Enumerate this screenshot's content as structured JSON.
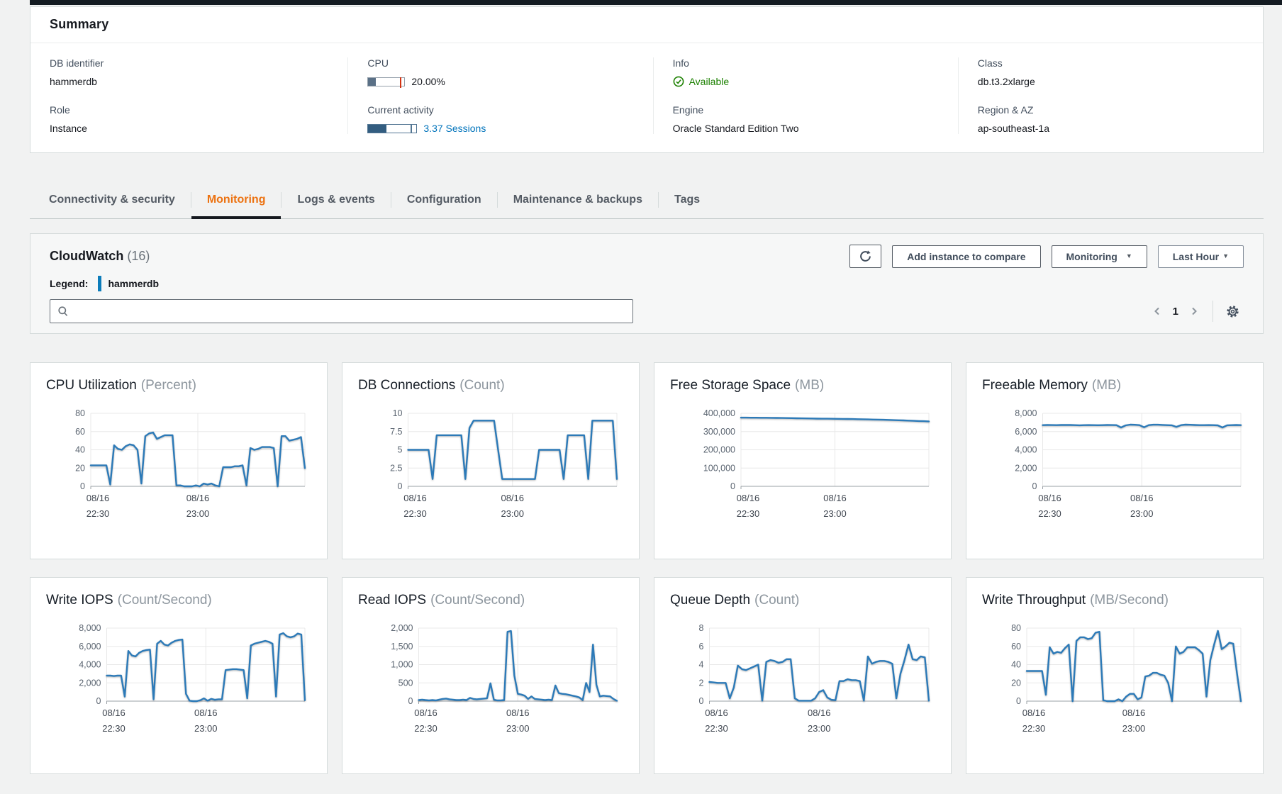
{
  "summary": {
    "title": "Summary",
    "db_identifier": {
      "label": "DB identifier",
      "value": "hammerdb"
    },
    "role": {
      "label": "Role",
      "value": "Instance"
    },
    "cpu": {
      "label": "CPU",
      "value": "20.00%",
      "percent": 20
    },
    "current_activity": {
      "label": "Current activity",
      "value": "3.37 Sessions",
      "percent": 38
    },
    "info": {
      "label": "Info",
      "value": "Available"
    },
    "engine": {
      "label": "Engine",
      "value": "Oracle Standard Edition Two"
    },
    "class": {
      "label": "Class",
      "value": "db.t3.2xlarge"
    },
    "region": {
      "label": "Region & AZ",
      "value": "ap-southeast-1a"
    }
  },
  "tabs": [
    {
      "label": "Connectivity & security",
      "active": false
    },
    {
      "label": "Monitoring",
      "active": true
    },
    {
      "label": "Logs & events",
      "active": false
    },
    {
      "label": "Configuration",
      "active": false
    },
    {
      "label": "Maintenance & backups",
      "active": false
    },
    {
      "label": "Tags",
      "active": false
    }
  ],
  "cloudwatch": {
    "title": "CloudWatch",
    "count": "(16)",
    "legend_label": "Legend:",
    "legend_item": "hammerdb",
    "search_placeholder": "",
    "add_instance_button": "Add instance to compare",
    "monitoring_dropdown": "Monitoring",
    "time_range_dropdown": "Last Hour",
    "page_number": "1"
  },
  "icons": {
    "caret_down": "▼"
  },
  "colors": {
    "accent_orange": "#ec7211",
    "link_blue": "#0073bb",
    "status_green": "#1d8102",
    "chart_line_blue": "#2c7ab8",
    "legend_swatch_blue": "#0c7cba",
    "active_tab_underline": "#16191f"
  },
  "chart_data": [
    {
      "type": "line",
      "title": "CPU Utilization",
      "unit": "(Percent)",
      "series_name": "hammerdb",
      "ylim": [
        0,
        80
      ],
      "yticks": [
        0,
        20,
        40,
        60,
        80
      ],
      "ytick_labels": [
        "0",
        "20",
        "40",
        "60",
        "80"
      ],
      "x_tick_labels": [
        [
          "08/16",
          "22:30"
        ],
        [
          "08/16",
          "23:00"
        ]
      ],
      "grid": true,
      "legend_position": "none",
      "values": [
        23,
        23,
        23,
        23,
        23,
        2,
        45,
        41,
        40,
        44,
        46,
        45,
        40,
        3,
        55,
        58,
        59,
        52,
        54,
        56,
        56,
        56,
        1,
        1,
        0,
        0,
        0,
        1,
        0,
        3,
        2,
        3,
        1,
        0,
        21,
        21,
        21,
        22,
        22,
        23,
        1,
        42,
        40,
        41,
        43,
        43,
        43,
        42,
        0,
        55,
        55,
        50,
        51,
        52,
        54,
        20
      ]
    },
    {
      "type": "line",
      "title": "DB Connections",
      "unit": "(Count)",
      "series_name": "hammerdb",
      "ylim": [
        0,
        10
      ],
      "yticks": [
        0,
        2.5,
        5,
        7.5,
        10
      ],
      "ytick_labels": [
        "0",
        "2.5",
        "5",
        "7.5",
        "10"
      ],
      "x_tick_labels": [
        [
          "08/16",
          "22:30"
        ],
        [
          "08/16",
          "23:00"
        ]
      ],
      "grid": true,
      "legend_position": "none",
      "values": [
        5,
        5,
        5,
        5,
        5,
        5,
        1,
        7,
        7,
        7,
        7,
        7,
        7,
        7,
        1,
        8,
        9,
        9,
        9,
        9,
        9,
        9,
        5,
        1,
        1,
        1,
        1,
        1,
        1,
        1,
        1,
        1,
        5,
        5,
        5,
        5,
        5,
        5,
        1,
        7,
        7,
        7,
        7,
        7,
        1,
        9,
        9,
        9,
        9,
        9,
        9,
        1
      ]
    },
    {
      "type": "line",
      "title": "Free Storage Space",
      "unit": "(MB)",
      "series_name": "hammerdb",
      "ylim": [
        0,
        400000
      ],
      "yticks": [
        0,
        100000,
        200000,
        300000,
        400000
      ],
      "ytick_labels": [
        "0",
        "100,000",
        "200,000",
        "300,000",
        "400,000"
      ],
      "x_tick_labels": [
        [
          "08/16",
          "22:30"
        ],
        [
          "08/16",
          "23:00"
        ]
      ],
      "grid": true,
      "legend_position": "none",
      "values": [
        376500,
        376300,
        376100,
        375900,
        375700,
        375400,
        375000,
        374600,
        374200,
        373800,
        373400,
        373000,
        372500,
        372000,
        371500,
        371000,
        370600,
        370300,
        370000,
        369700,
        369300,
        368900,
        368400,
        367900,
        367300,
        366700,
        366000,
        365300,
        364500,
        363700,
        362900,
        362000,
        361000,
        360000,
        358900,
        357800,
        356700,
        355800
      ]
    },
    {
      "type": "line",
      "title": "Freeable Memory",
      "unit": "(MB)",
      "series_name": "hammerdb",
      "ylim": [
        0,
        8000
      ],
      "yticks": [
        0,
        2000,
        4000,
        6000,
        8000
      ],
      "ytick_labels": [
        "0",
        "2,000",
        "4,000",
        "6,000",
        "8,000"
      ],
      "x_tick_labels": [
        [
          "08/16",
          "22:30"
        ],
        [
          "08/16",
          "23:00"
        ]
      ],
      "grid": true,
      "legend_position": "none",
      "values": [
        6700,
        6720,
        6710,
        6700,
        6715,
        6730,
        6720,
        6700,
        6690,
        6700,
        6710,
        6700,
        6695,
        6700,
        6720,
        6710,
        6700,
        6450,
        6680,
        6760,
        6740,
        6700,
        6470,
        6700,
        6750,
        6750,
        6730,
        6700,
        6690,
        6520,
        6700,
        6760,
        6740,
        6720,
        6700,
        6700,
        6710,
        6700,
        6680,
        6450,
        6690,
        6700,
        6720,
        6700
      ]
    },
    {
      "type": "line",
      "title": "Write IOPS",
      "unit": "(Count/Second)",
      "series_name": "hammerdb",
      "ylim": [
        0,
        8000
      ],
      "yticks": [
        0,
        2000,
        4000,
        6000,
        8000
      ],
      "ytick_labels": [
        "0",
        "2,000",
        "4,000",
        "6,000",
        "8,000"
      ],
      "x_tick_labels": [
        [
          "08/16",
          "22:30"
        ],
        [
          "08/16",
          "23:00"
        ]
      ],
      "grid": true,
      "legend_position": "none",
      "values": [
        2800,
        2800,
        2750,
        2800,
        2800,
        500,
        5500,
        5000,
        4900,
        5300,
        5500,
        5600,
        5650,
        200,
        6300,
        6600,
        6200,
        6100,
        6400,
        6600,
        6700,
        6750,
        800,
        50,
        0,
        0,
        100,
        300,
        50,
        250,
        150,
        200,
        200,
        3400,
        3450,
        3500,
        3500,
        3450,
        3400,
        300,
        6100,
        6300,
        6400,
        6500,
        6600,
        6500,
        6300,
        500,
        7300,
        7450,
        7100,
        7000,
        7100,
        7400,
        7300,
        100
      ]
    },
    {
      "type": "line",
      "title": "Read IOPS",
      "unit": "(Count/Second)",
      "series_name": "hammerdb",
      "ylim": [
        0,
        2000
      ],
      "yticks": [
        0,
        500,
        1000,
        1500,
        2000
      ],
      "ytick_labels": [
        "0",
        "500",
        "1,000",
        "1,500",
        "2,000"
      ],
      "x_tick_labels": [
        [
          "08/16",
          "22:30"
        ],
        [
          "08/16",
          "23:00"
        ]
      ],
      "grid": true,
      "legend_position": "none",
      "values": [
        30,
        40,
        30,
        20,
        30,
        20,
        40,
        60,
        70,
        50,
        40,
        30,
        30,
        40,
        30,
        90,
        60,
        50,
        60,
        70,
        80,
        490,
        40,
        20,
        20,
        30,
        1900,
        1920,
        700,
        200,
        180,
        150,
        60,
        130,
        60,
        50,
        40,
        30,
        40,
        30,
        430,
        220,
        200,
        190,
        170,
        150,
        130,
        100,
        30,
        500,
        250,
        1550,
        450,
        130,
        150,
        140,
        130,
        60,
        10
      ]
    },
    {
      "type": "line",
      "title": "Queue Depth",
      "unit": "(Count)",
      "series_name": "hammerdb",
      "ylim": [
        0,
        8
      ],
      "yticks": [
        0,
        2,
        4,
        6,
        8
      ],
      "ytick_labels": [
        "0",
        "2",
        "4",
        "6",
        "8"
      ],
      "x_tick_labels": [
        [
          "08/16",
          "22:30"
        ],
        [
          "08/16",
          "23:00"
        ]
      ],
      "grid": true,
      "legend_position": "none",
      "values": [
        2.1,
        2.05,
        2,
        2,
        2,
        0.3,
        1.5,
        3.9,
        3.5,
        3.4,
        3.6,
        3.8,
        4,
        0.05,
        4.3,
        4.5,
        4.4,
        4.2,
        4.3,
        4.6,
        4.6,
        0.3,
        0.05,
        0.05,
        0.05,
        0.05,
        0.3,
        1,
        1.2,
        0.4,
        0.15,
        0.1,
        2.2,
        2.2,
        2.4,
        2.3,
        2.3,
        2.2,
        0.05,
        4.9,
        4.1,
        4.3,
        4.4,
        4.4,
        4.3,
        4.1,
        0.3,
        3,
        4.5,
        6.2,
        4.6,
        4.5,
        4.9,
        4.8,
        0.05
      ]
    },
    {
      "type": "line",
      "title": "Write Throughput",
      "unit": "(MB/Second)",
      "series_name": "hammerdb",
      "ylim": [
        0,
        80
      ],
      "yticks": [
        0,
        20,
        40,
        60,
        80
      ],
      "ytick_labels": [
        "0",
        "20",
        "40",
        "60",
        "80"
      ],
      "x_tick_labels": [
        [
          "08/16",
          "22:30"
        ],
        [
          "08/16",
          "23:00"
        ]
      ],
      "grid": true,
      "legend_position": "none",
      "values": [
        33,
        33,
        33,
        33,
        33,
        7,
        59,
        52,
        54,
        53,
        58,
        62,
        0,
        66,
        70,
        70,
        68,
        69,
        75,
        76,
        1,
        0,
        0,
        0,
        2,
        0,
        5,
        8,
        8,
        2,
        4,
        27,
        28,
        31,
        31,
        29,
        28,
        20,
        0,
        60,
        52,
        54,
        59,
        59,
        59,
        56,
        52,
        5,
        45,
        62,
        77,
        57,
        60,
        64,
        63,
        30,
        0
      ]
    }
  ]
}
